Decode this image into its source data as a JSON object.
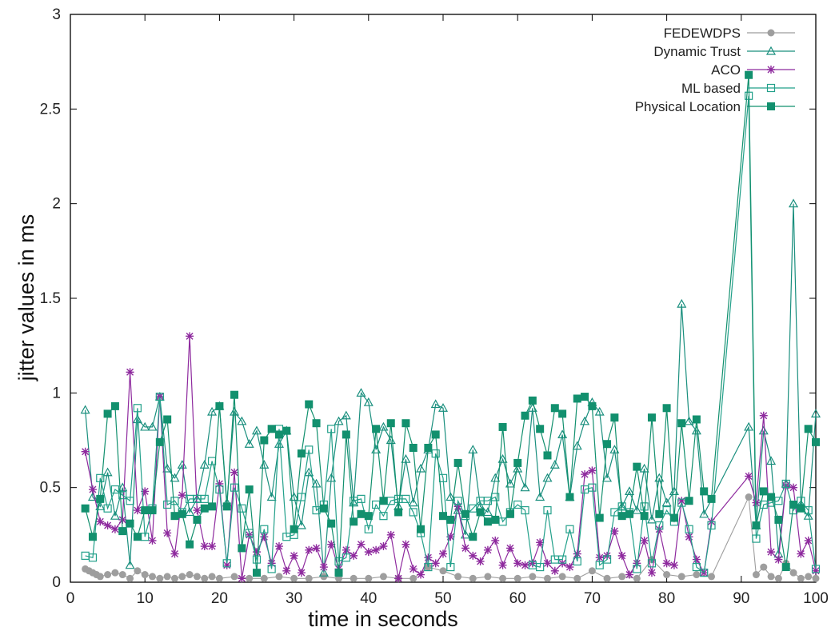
{
  "chart_data": {
    "type": "line",
    "xlabel": "time in seconds",
    "ylabel": "jitter values in ms",
    "xlim": [
      0,
      100
    ],
    "ylim": [
      0,
      3
    ],
    "xticks": [
      "0",
      "10",
      "20",
      "30",
      "40",
      "50",
      "60",
      "70",
      "80",
      "90",
      "100"
    ],
    "yticks": [
      "0",
      "0.5",
      "1",
      "1.5",
      "2",
      "2.5",
      "3"
    ],
    "legend_position": "top-right",
    "grid": false,
    "series": [
      {
        "name": "FEDEWDPS",
        "color": "#9e9e9e",
        "marker": "filled-circle",
        "x": [
          2,
          2.5,
          3,
          3.5,
          4,
          5,
          6,
          7,
          8,
          9,
          10,
          11,
          12,
          13,
          14,
          15,
          16,
          17,
          18,
          19,
          20,
          22,
          24,
          26,
          28,
          30,
          32,
          34,
          36,
          38,
          40,
          42,
          44,
          46,
          48,
          50,
          52,
          54,
          56,
          58,
          60,
          62,
          64,
          66,
          68,
          70,
          72,
          74,
          76,
          78,
          80,
          82,
          84,
          86,
          91,
          92,
          93,
          94,
          95,
          96,
          97,
          98,
          99,
          100
        ],
        "y": [
          0.07,
          0.06,
          0.05,
          0.04,
          0.03,
          0.04,
          0.05,
          0.04,
          0.02,
          0.06,
          0.04,
          0.03,
          0.02,
          0.03,
          0.02,
          0.03,
          0.04,
          0.03,
          0.02,
          0.03,
          0.02,
          0.03,
          0.02,
          0.02,
          0.03,
          0.02,
          0.02,
          0.03,
          0.02,
          0.02,
          0.02,
          0.03,
          0.02,
          0.02,
          0.08,
          0.06,
          0.03,
          0.02,
          0.03,
          0.02,
          0.02,
          0.03,
          0.02,
          0.03,
          0.02,
          0.06,
          0.02,
          0.03,
          0.02,
          0.12,
          0.04,
          0.03,
          0.04,
          0.03,
          0.45,
          0.04,
          0.08,
          0.03,
          0.02,
          0.1,
          0.05,
          0.02,
          0.03,
          0.02
        ]
      },
      {
        "name": "Dynamic Trust",
        "color": "#1a8f7e",
        "marker": "open-triangle",
        "x": [
          2,
          3,
          4,
          5,
          6,
          7,
          8,
          9,
          10,
          11,
          12,
          13,
          14,
          15,
          16,
          17,
          18,
          19,
          20,
          21,
          22,
          23,
          24,
          25,
          26,
          27,
          28,
          29,
          30,
          31,
          32,
          33,
          34,
          35,
          36,
          37,
          38,
          39,
          40,
          41,
          42,
          43,
          44,
          45,
          46,
          47,
          48,
          49,
          50,
          51,
          52,
          53,
          54,
          55,
          56,
          57,
          58,
          59,
          60,
          61,
          62,
          63,
          64,
          65,
          66,
          67,
          68,
          69,
          70,
          71,
          72,
          73,
          74,
          75,
          76,
          77,
          78,
          79,
          80,
          81,
          82,
          83,
          84,
          85,
          91,
          92,
          93,
          94,
          95,
          96,
          97,
          98,
          99,
          100
        ],
        "y": [
          0.91,
          0.45,
          0.4,
          0.58,
          0.35,
          0.5,
          0.09,
          0.86,
          0.82,
          0.82,
          0.98,
          0.6,
          0.55,
          0.62,
          0.37,
          0.44,
          0.62,
          0.9,
          0.93,
          0.42,
          0.9,
          0.85,
          0.73,
          0.8,
          0.62,
          0.45,
          0.73,
          0.8,
          0.45,
          0.3,
          0.58,
          0.52,
          0.05,
          0.55,
          0.85,
          0.88,
          0.42,
          1.0,
          0.95,
          0.7,
          0.82,
          0.75,
          0.4,
          0.65,
          0.42,
          0.6,
          0.7,
          0.94,
          0.92,
          0.45,
          0.38,
          0.25,
          0.7,
          0.4,
          0.37,
          0.55,
          0.65,
          0.52,
          0.6,
          0.5,
          0.92,
          0.45,
          0.55,
          0.62,
          0.78,
          0.45,
          0.72,
          0.85,
          0.95,
          0.9,
          0.55,
          0.7,
          0.4,
          0.48,
          0.38,
          0.6,
          0.33,
          0.55,
          0.42,
          0.48,
          1.47,
          0.85,
          0.8,
          0.36,
          0.82,
          0.3,
          0.8,
          0.64,
          0.15,
          0.52,
          2.0,
          0.4,
          0.35,
          0.89
        ]
      },
      {
        "name": "ACO",
        "color": "#8e2a9e",
        "marker": "star",
        "x": [
          2,
          3,
          4,
          5,
          6,
          7,
          8,
          9,
          10,
          11,
          12,
          13,
          14,
          15,
          16,
          17,
          18,
          19,
          20,
          21,
          22,
          23,
          24,
          25,
          26,
          27,
          28,
          29,
          30,
          31,
          32,
          33,
          34,
          35,
          36,
          37,
          38,
          39,
          40,
          41,
          42,
          43,
          44,
          45,
          46,
          47,
          48,
          49,
          50,
          51,
          52,
          53,
          54,
          55,
          56,
          57,
          58,
          59,
          60,
          61,
          62,
          63,
          64,
          65,
          66,
          67,
          68,
          69,
          70,
          71,
          72,
          73,
          74,
          75,
          76,
          77,
          78,
          79,
          80,
          81,
          82,
          83,
          84,
          85,
          86,
          91,
          92,
          93,
          94,
          95,
          96,
          97,
          98,
          99,
          100
        ],
        "y": [
          0.69,
          0.49,
          0.32,
          0.3,
          0.28,
          0.33,
          1.11,
          0.38,
          0.48,
          0.22,
          0.98,
          0.26,
          0.15,
          0.46,
          1.3,
          0.38,
          0.19,
          0.19,
          0.52,
          0.09,
          0.58,
          0.02,
          0.25,
          0.16,
          0.24,
          0.1,
          0.19,
          0.06,
          0.14,
          0.05,
          0.17,
          0.18,
          0.08,
          0.2,
          0.07,
          0.17,
          0.14,
          0.2,
          0.16,
          0.17,
          0.19,
          0.25,
          0.02,
          0.2,
          0.07,
          0.04,
          0.13,
          0.1,
          0.15,
          0.24,
          0.4,
          0.18,
          0.14,
          0.11,
          0.17,
          0.22,
          0.09,
          0.18,
          0.1,
          0.09,
          0.1,
          0.21,
          0.1,
          0.06,
          0.1,
          0.08,
          0.15,
          0.57,
          0.59,
          0.13,
          0.14,
          0.27,
          0.14,
          0.04,
          0.1,
          0.22,
          0.05,
          0.28,
          0.1,
          0.09,
          0.43,
          0.24,
          0.12,
          0.05,
          0.32,
          0.56,
          0.42,
          0.88,
          0.16,
          0.12,
          0.51,
          0.5,
          0.15,
          0.22,
          0.06
        ]
      },
      {
        "name": "ML based",
        "color": "#22a08a",
        "marker": "open-square",
        "x": [
          2,
          3,
          4,
          5,
          6,
          7,
          8,
          9,
          10,
          11,
          12,
          13,
          14,
          15,
          16,
          17,
          18,
          19,
          20,
          21,
          22,
          23,
          24,
          25,
          26,
          27,
          28,
          29,
          30,
          31,
          32,
          33,
          34,
          35,
          36,
          37,
          38,
          39,
          40,
          41,
          42,
          43,
          44,
          45,
          46,
          47,
          48,
          49,
          50,
          51,
          52,
          53,
          54,
          55,
          56,
          57,
          58,
          59,
          60,
          61,
          62,
          63,
          64,
          65,
          66,
          67,
          68,
          69,
          70,
          71,
          72,
          73,
          74,
          75,
          76,
          77,
          78,
          79,
          80,
          81,
          82,
          83,
          84,
          85,
          86,
          91,
          92,
          93,
          94,
          95,
          96,
          97,
          98,
          99,
          100
        ],
        "y": [
          0.14,
          0.13,
          0.55,
          0.39,
          0.49,
          0.46,
          0.43,
          0.92,
          0.24,
          0.39,
          0.98,
          0.41,
          0.43,
          0.37,
          0.44,
          0.44,
          0.44,
          0.64,
          0.49,
          0.1,
          0.5,
          0.39,
          0.26,
          0.12,
          0.28,
          0.07,
          0.81,
          0.24,
          0.25,
          0.45,
          0.7,
          0.38,
          0.41,
          0.81,
          0.11,
          0.13,
          0.43,
          0.44,
          0.28,
          0.41,
          0.35,
          0.43,
          0.44,
          0.44,
          0.37,
          0.26,
          0.08,
          0.68,
          0.55,
          0.08,
          0.43,
          0.35,
          0.39,
          0.43,
          0.43,
          0.45,
          0.32,
          0.37,
          0.41,
          0.38,
          0.09,
          0.08,
          0.38,
          0.12,
          0.12,
          0.28,
          0.11,
          0.49,
          0.5,
          0.09,
          0.12,
          0.37,
          0.4,
          0.37,
          0.07,
          0.4,
          0.1,
          0.3,
          0.38,
          0.32,
          0.42,
          0.28,
          0.08,
          0.05,
          0.3,
          2.57,
          0.23,
          0.41,
          0.42,
          0.43,
          0.52,
          0.38,
          0.43,
          0.38,
          0.07
        ]
      },
      {
        "name": "Physical Location",
        "color": "#12906e",
        "marker": "filled-square",
        "x": [
          2,
          3,
          4,
          5,
          6,
          7,
          8,
          9,
          10,
          11,
          12,
          13,
          14,
          15,
          16,
          17,
          18,
          19,
          20,
          21,
          22,
          23,
          24,
          25,
          26,
          27,
          28,
          29,
          30,
          31,
          32,
          33,
          34,
          35,
          36,
          37,
          38,
          39,
          40,
          41,
          42,
          43,
          44,
          45,
          46,
          47,
          48,
          49,
          50,
          51,
          52,
          53,
          54,
          55,
          56,
          57,
          58,
          59,
          60,
          61,
          62,
          63,
          64,
          65,
          66,
          67,
          68,
          69,
          70,
          71,
          72,
          73,
          74,
          75,
          76,
          77,
          78,
          79,
          80,
          81,
          82,
          83,
          84,
          85,
          86,
          91,
          92,
          93,
          94,
          95,
          96,
          97,
          98,
          99,
          100
        ],
        "y": [
          0.39,
          0.24,
          0.44,
          0.89,
          0.93,
          0.27,
          0.31,
          0.24,
          0.38,
          0.38,
          0.74,
          0.86,
          0.35,
          0.36,
          0.2,
          0.33,
          0.39,
          0.4,
          0.93,
          0.4,
          0.99,
          0.18,
          0.49,
          0.05,
          0.75,
          0.81,
          0.78,
          0.8,
          0.28,
          0.68,
          0.94,
          0.84,
          0.39,
          0.31,
          0.05,
          0.78,
          0.32,
          0.36,
          0.35,
          0.81,
          0.43,
          0.84,
          0.37,
          0.84,
          0.71,
          0.28,
          0.71,
          0.78,
          0.35,
          0.33,
          0.63,
          0.36,
          0.24,
          0.37,
          0.32,
          0.33,
          0.82,
          0.36,
          0.63,
          0.88,
          0.96,
          0.81,
          0.67,
          0.92,
          0.89,
          0.45,
          0.97,
          0.98,
          0.93,
          0.34,
          0.73,
          0.87,
          0.35,
          0.36,
          0.61,
          0.35,
          0.87,
          0.36,
          0.92,
          0.34,
          0.84,
          0.43,
          0.86,
          0.48,
          0.44,
          2.68,
          0.3,
          0.48,
          0.45,
          0.33,
          0.08,
          0.41,
          0.39,
          0.81,
          0.74
        ]
      }
    ]
  }
}
